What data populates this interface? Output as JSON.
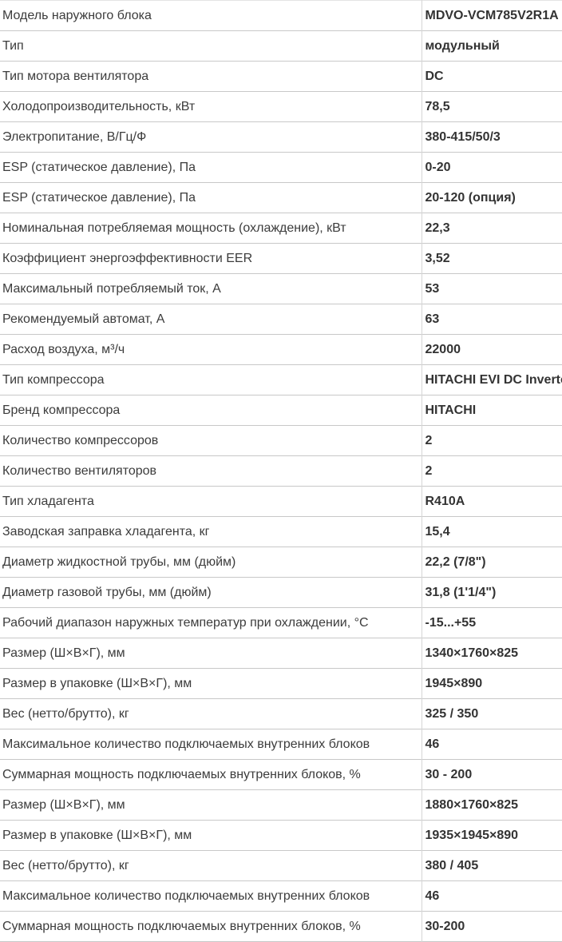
{
  "specs": [
    {
      "label": "Модель наружного блока",
      "value": "MDVO-VCM785V2R1A"
    },
    {
      "label": "Тип",
      "value": "модульный"
    },
    {
      "label": "Тип мотора вентилятора",
      "value": "DC"
    },
    {
      "label": "Холодопроизводительность, кВт",
      "value": "78,5"
    },
    {
      "label": "Электропитание, В/Гц/Ф",
      "value": "380-415/50/3"
    },
    {
      "label": "ESP (статическое давление), Па",
      "value": "0-20"
    },
    {
      "label": "ESP (статическое давление), Па",
      "value": "20-120 (опция)"
    },
    {
      "label": "Номинальная потребляемая мощность (охлаждение), кВт",
      "value": "22,3"
    },
    {
      "label": "Коэффициент энергоэффективности EER",
      "value": "3,52"
    },
    {
      "label": "Максимальный потребляемый ток, А",
      "value": "53"
    },
    {
      "label": "Рекомендуемый автомат, А",
      "value": "63"
    },
    {
      "label": "Расход воздуха, м³/ч",
      "value": "22000"
    },
    {
      "label": "Тип компрессора",
      "value": "HITACHI EVI DC Inverter"
    },
    {
      "label": "Бренд компрессора",
      "value": "HITACHI"
    },
    {
      "label": "Количество компрессоров",
      "value": "2"
    },
    {
      "label": "Количество вентиляторов",
      "value": "2"
    },
    {
      "label": "Тип хладагента",
      "value": "R410A"
    },
    {
      "label": "Заводская заправка хладагента, кг",
      "value": "15,4"
    },
    {
      "label": "Диаметр жидкостной трубы, мм (дюйм)",
      "value": "22,2 (7/8\")"
    },
    {
      "label": "Диаметр газовой трубы, мм (дюйм)",
      "value": "31,8 (1'1/4\")"
    },
    {
      "label": "Рабочий диапазон наружных температур при охлаждении, °С",
      "value": "-15...+55"
    },
    {
      "label": "Размер (Ш×В×Г), мм",
      "value": "1340×1760×825"
    },
    {
      "label": "Размер в упаковке (Ш×В×Г), мм",
      "value": "1945×890"
    },
    {
      "label": "Вес (нетто/брутто), кг",
      "value": "325 / 350"
    },
    {
      "label": "Максимальное количество подключаемых внутренних блоков",
      "value": "46"
    },
    {
      "label": "Суммарная мощность подключаемых внутренних блоков, %",
      "value": "30 - 200"
    },
    {
      "label": "Размер (Ш×В×Г), мм",
      "value": "1880×1760×825"
    },
    {
      "label": "Размер в упаковке (Ш×В×Г), мм",
      "value": "1935×1945×890"
    },
    {
      "label": "Вес (нетто/брутто), кг",
      "value": "380 / 405"
    },
    {
      "label": "Максимальное количество подключаемых внутренних блоков",
      "value": "46"
    },
    {
      "label": "Суммарная мощность подключаемых внутренних блоков, %",
      "value": "30-200"
    }
  ]
}
